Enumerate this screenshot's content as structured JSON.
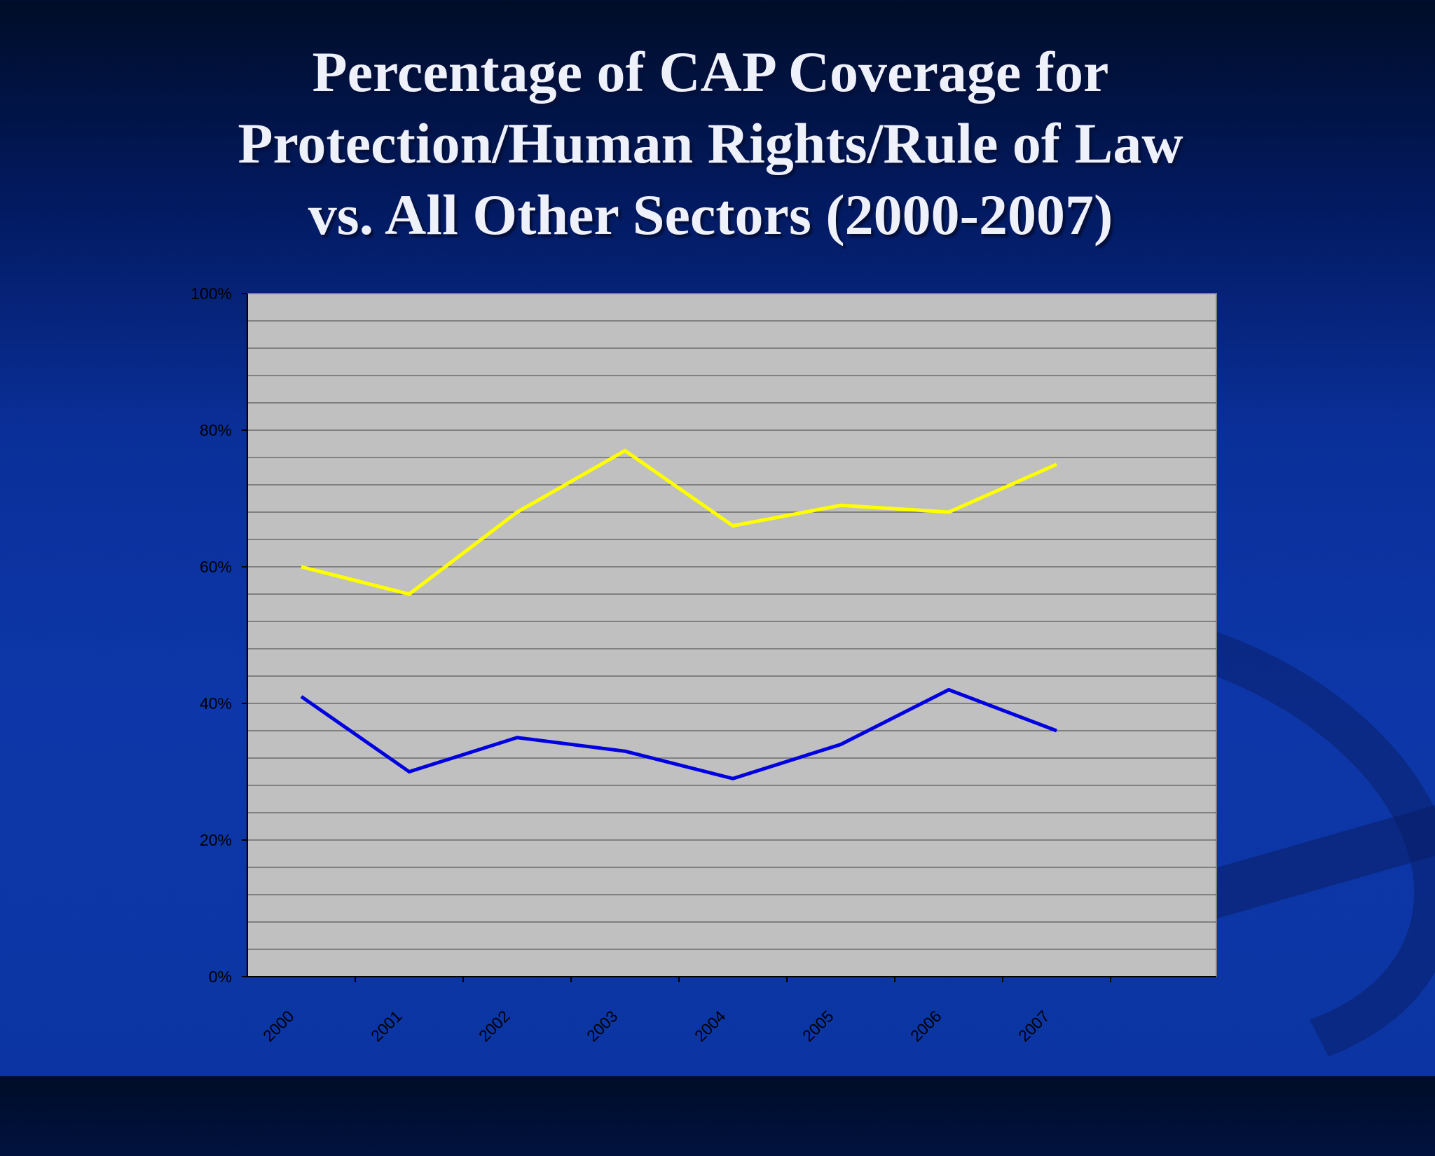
{
  "title_lines": [
    "Percentage of CAP Coverage for",
    "Protection/Human Rights/Rule of Law",
    "vs. All Other Sectors (2000-2007)"
  ],
  "chart_data": {
    "type": "line",
    "title": "Percentage of CAP Coverage for Protection/Human Rights/Rule of Law vs. All Other Sectors (2000-2007)",
    "categories": [
      "2000",
      "2001",
      "2002",
      "2003",
      "2004",
      "2005",
      "2006",
      "2007"
    ],
    "series": [
      {
        "color": "#ffff00",
        "values": [
          60,
          56,
          68,
          77,
          66,
          69,
          68,
          75
        ]
      },
      {
        "color": "#0000e0",
        "values": [
          41,
          30,
          35,
          33,
          29,
          34,
          42,
          36
        ]
      }
    ],
    "ylim": [
      0,
      100
    ],
    "yticks": [
      "0%",
      "20%",
      "40%",
      "60%",
      "80%",
      "100%"
    ],
    "grid": true,
    "legend": "none",
    "plot_background": "#c0c0c0"
  }
}
